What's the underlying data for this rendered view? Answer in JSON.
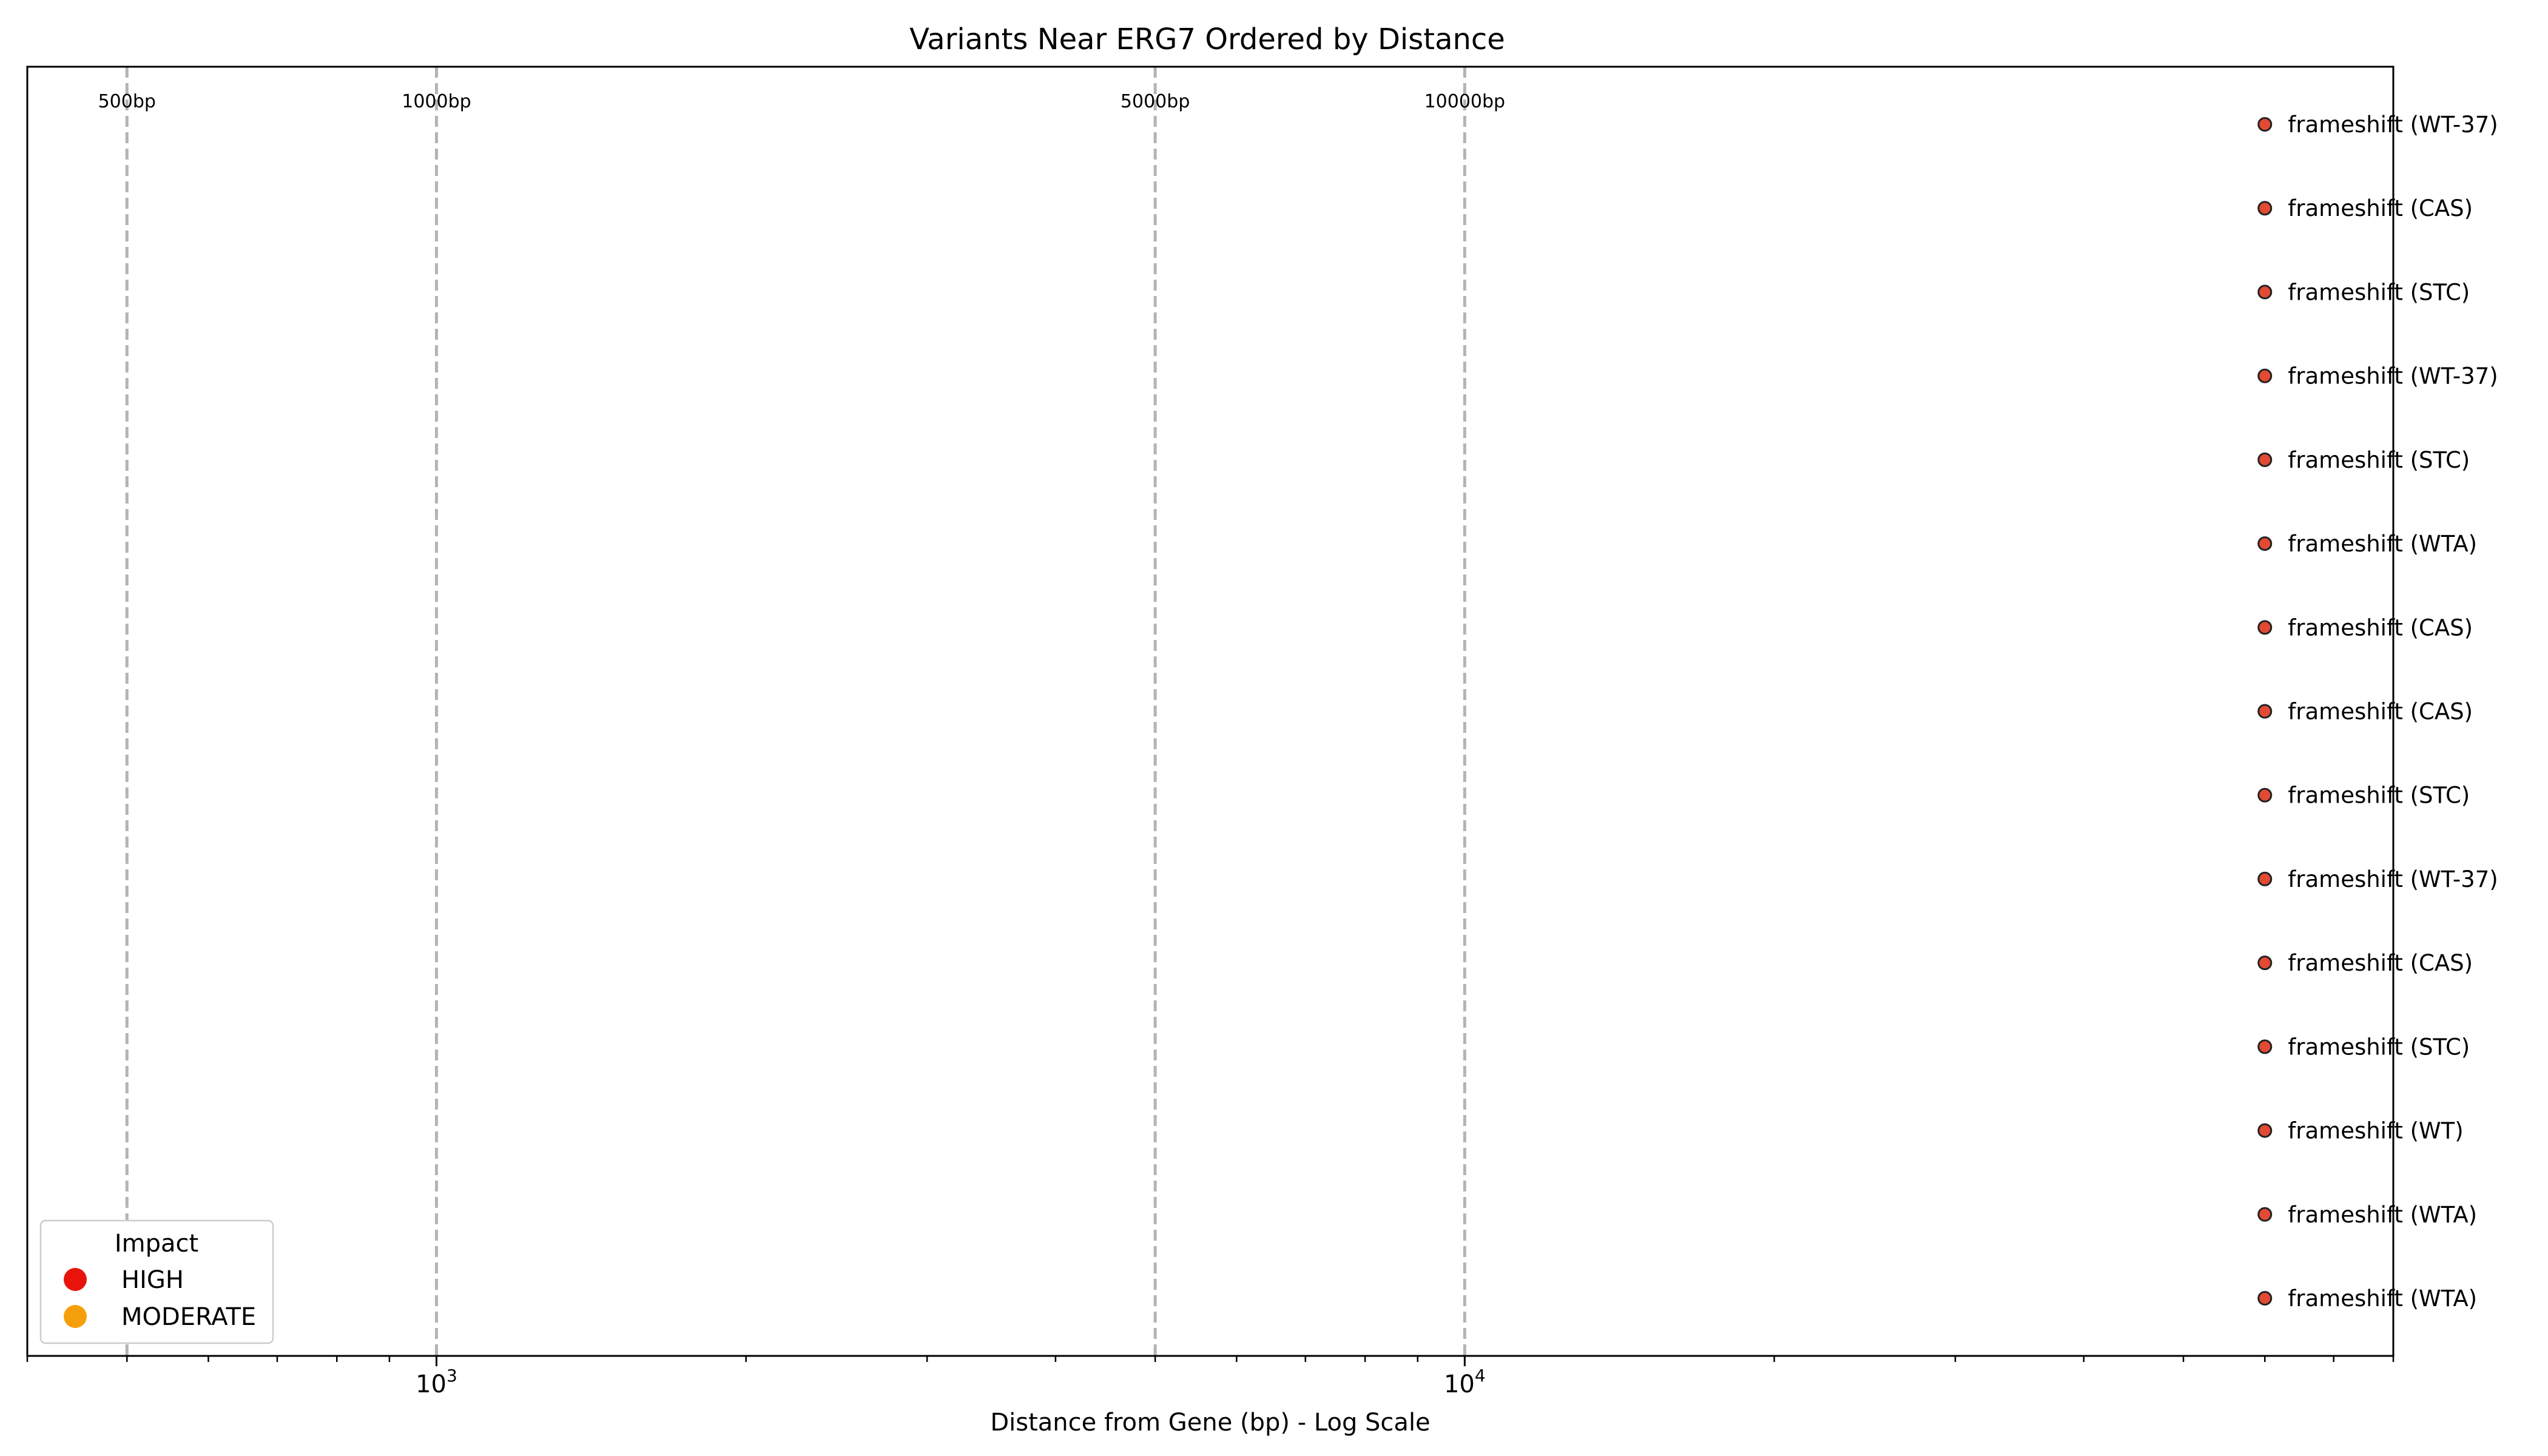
{
  "chart_data": {
    "type": "scatter",
    "title": "Variants Near ERG7 Ordered by Distance",
    "xlabel": "Distance from Gene (bp) - Log Scale",
    "ylabel": "",
    "x_scale": "log",
    "xlim": [
      400,
      80000
    ],
    "major_ticks": [
      {
        "value": 1000,
        "base": "10",
        "exp": "3"
      },
      {
        "value": 10000,
        "base": "10",
        "exp": "4"
      }
    ],
    "reference_lines": [
      {
        "value": 500,
        "label": "500bp"
      },
      {
        "value": 1000,
        "label": "1000bp"
      },
      {
        "value": 5000,
        "label": "5000bp"
      },
      {
        "value": 10000,
        "label": "10000bp"
      }
    ],
    "grid": false,
    "legend_position": "lower-left",
    "legend": {
      "title": "Impact",
      "items": [
        {
          "label": "HIGH",
          "color": "#e8140c"
        },
        {
          "label": "MODERATE",
          "color": "#f5a00a"
        }
      ]
    },
    "point_color": "#e24a33",
    "points": [
      {
        "x": 60000,
        "label": "frameshift (WT-37)",
        "impact": "HIGH"
      },
      {
        "x": 60000,
        "label": "frameshift (CAS)",
        "impact": "HIGH"
      },
      {
        "x": 60000,
        "label": "frameshift (STC)",
        "impact": "HIGH"
      },
      {
        "x": 60000,
        "label": "frameshift (WT-37)",
        "impact": "HIGH"
      },
      {
        "x": 60000,
        "label": "frameshift (STC)",
        "impact": "HIGH"
      },
      {
        "x": 60000,
        "label": "frameshift (WTA)",
        "impact": "HIGH"
      },
      {
        "x": 60000,
        "label": "frameshift (CAS)",
        "impact": "HIGH"
      },
      {
        "x": 60000,
        "label": "frameshift (CAS)",
        "impact": "HIGH"
      },
      {
        "x": 60000,
        "label": "frameshift (STC)",
        "impact": "HIGH"
      },
      {
        "x": 60000,
        "label": "frameshift (WT-37)",
        "impact": "HIGH"
      },
      {
        "x": 60000,
        "label": "frameshift (CAS)",
        "impact": "HIGH"
      },
      {
        "x": 60000,
        "label": "frameshift (STC)",
        "impact": "HIGH"
      },
      {
        "x": 60000,
        "label": "frameshift (WT)",
        "impact": "HIGH"
      },
      {
        "x": 60000,
        "label": "frameshift (WTA)",
        "impact": "HIGH"
      },
      {
        "x": 60000,
        "label": "frameshift (WTA)",
        "impact": "HIGH"
      }
    ]
  }
}
